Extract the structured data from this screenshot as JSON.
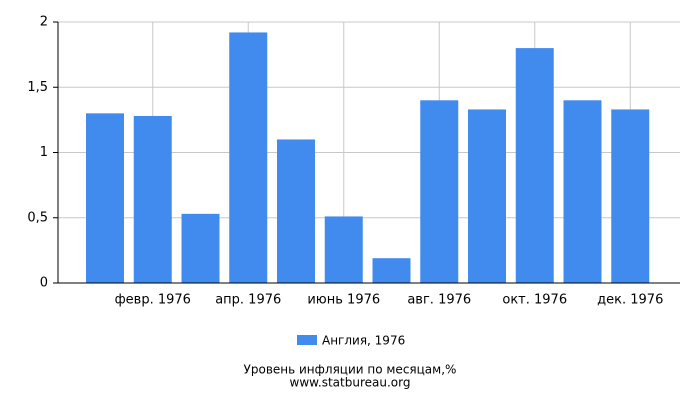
{
  "chart_data": {
    "type": "bar",
    "title": "Уровень инфляции по месяцам,%",
    "source": "www.statbureau.org",
    "categories": [
      null,
      "февр. 1976",
      null,
      "апр. 1976",
      null,
      "июнь 1976",
      null,
      "авг. 1976",
      null,
      "окт. 1976",
      null,
      "дек. 1976"
    ],
    "series": [
      {
        "name": "Англия, 1976",
        "color": "#418bef",
        "values": [
          1.3,
          1.28,
          0.53,
          1.92,
          1.1,
          0.51,
          0.19,
          1.4,
          1.33,
          1.8,
          1.4,
          1.33
        ]
      }
    ],
    "ylim": [
      0,
      2
    ],
    "yticks": [
      0,
      {
        "value": 0.5,
        "label": "0,5"
      },
      1,
      {
        "value": 1.5,
        "label": "1,5"
      },
      2
    ],
    "grid": true
  }
}
